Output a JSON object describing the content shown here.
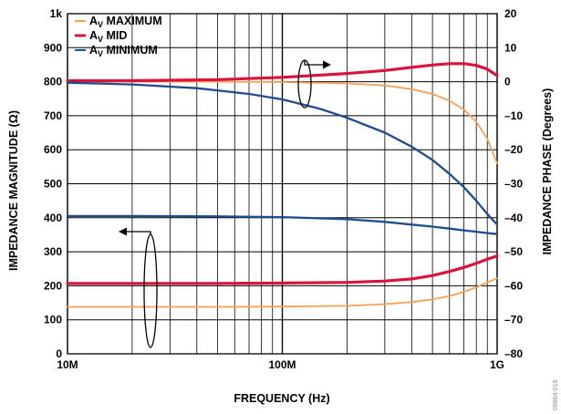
{
  "chart_data": {
    "type": "line",
    "xlabel": "FREQUENCY (Hz)",
    "ylabel_left": "IMPEDANCE MAGNITUDE (Ω)",
    "ylabel_right": "IMPEDANCE PHASE (Degrees)",
    "x_scale": "log",
    "xlim": [
      10000000,
      1000000000
    ],
    "x_ticks": [
      {
        "value": 10000000,
        "label": "10M"
      },
      {
        "value": 100000000,
        "label": "100M"
      },
      {
        "value": 1000000000,
        "label": "1G"
      }
    ],
    "ylim_left": [
      0,
      1000
    ],
    "y_ticks_left": [
      {
        "value": 0,
        "label": "0"
      },
      {
        "value": 100,
        "label": "100"
      },
      {
        "value": 200,
        "label": "200"
      },
      {
        "value": 300,
        "label": "300"
      },
      {
        "value": 400,
        "label": "400"
      },
      {
        "value": 500,
        "label": "500"
      },
      {
        "value": 600,
        "label": "600"
      },
      {
        "value": 700,
        "label": "700"
      },
      {
        "value": 800,
        "label": "800"
      },
      {
        "value": 900,
        "label": "900"
      },
      {
        "value": 1000,
        "label": "1k"
      }
    ],
    "ylim_right": [
      -80,
      20
    ],
    "y_ticks_right": [
      {
        "value": 20,
        "label": "20"
      },
      {
        "value": 10,
        "label": "10"
      },
      {
        "value": 0,
        "label": "0"
      },
      {
        "value": -10,
        "label": "–10"
      },
      {
        "value": -20,
        "label": "–20"
      },
      {
        "value": -30,
        "label": "–30"
      },
      {
        "value": -40,
        "label": "–40"
      },
      {
        "value": -50,
        "label": "–50"
      },
      {
        "value": -60,
        "label": "–60"
      },
      {
        "value": -70,
        "label": "–70"
      },
      {
        "value": -80,
        "label": "–80"
      }
    ],
    "grid": true,
    "legend_position": "top-left",
    "legend": [
      {
        "main": "A",
        "sub": "V",
        "rest": " MAXIMUM",
        "color": "#F7A058"
      },
      {
        "main": "A",
        "sub": "V",
        "rest": " MID",
        "color": "#D8143C"
      },
      {
        "main": "A",
        "sub": "V",
        "rest": " MINIMUM",
        "color": "#1F4C8F"
      }
    ],
    "series": [
      {
        "name": "AV MAXIMUM",
        "quantity": "magnitude",
        "axis": "left",
        "color": "#F7A058",
        "points": [
          [
            10000000,
            138
          ],
          [
            20000000,
            138
          ],
          [
            50000000,
            138
          ],
          [
            100000000,
            139
          ],
          [
            200000000,
            141
          ],
          [
            300000000,
            146
          ],
          [
            400000000,
            152
          ],
          [
            500000000,
            160
          ],
          [
            600000000,
            170
          ],
          [
            700000000,
            182
          ],
          [
            800000000,
            196
          ],
          [
            900000000,
            210
          ],
          [
            1000000000,
            222
          ]
        ]
      },
      {
        "name": "AV MID",
        "quantity": "magnitude",
        "axis": "left",
        "color": "#D8143C",
        "points": [
          [
            10000000,
            207
          ],
          [
            20000000,
            207
          ],
          [
            50000000,
            207
          ],
          [
            100000000,
            208
          ],
          [
            200000000,
            210
          ],
          [
            300000000,
            214
          ],
          [
            400000000,
            220
          ],
          [
            500000000,
            230
          ],
          [
            600000000,
            242
          ],
          [
            700000000,
            254
          ],
          [
            800000000,
            266
          ],
          [
            900000000,
            278
          ],
          [
            1000000000,
            288
          ]
        ]
      },
      {
        "name": "AV MINIMUM",
        "quantity": "magnitude",
        "axis": "left",
        "color": "#1F4C8F",
        "points": [
          [
            10000000,
            405
          ],
          [
            20000000,
            405
          ],
          [
            50000000,
            404
          ],
          [
            100000000,
            402
          ],
          [
            200000000,
            396
          ],
          [
            300000000,
            388
          ],
          [
            400000000,
            380
          ],
          [
            500000000,
            374
          ],
          [
            600000000,
            368
          ],
          [
            700000000,
            363
          ],
          [
            800000000,
            359
          ],
          [
            900000000,
            355
          ],
          [
            1000000000,
            352
          ]
        ]
      },
      {
        "name": "AV MAXIMUM",
        "quantity": "phase",
        "axis": "right",
        "color": "#F7A058",
        "points": [
          [
            10000000,
            0
          ],
          [
            20000000,
            0
          ],
          [
            50000000,
            0
          ],
          [
            100000000,
            -0.1
          ],
          [
            200000000,
            -0.5
          ],
          [
            300000000,
            -1.1
          ],
          [
            400000000,
            -2.2
          ],
          [
            500000000,
            -3.6
          ],
          [
            600000000,
            -5.6
          ],
          [
            700000000,
            -8.2
          ],
          [
            800000000,
            -11.8
          ],
          [
            900000000,
            -16.8
          ],
          [
            1000000000,
            -24
          ]
        ]
      },
      {
        "name": "AV MID",
        "quantity": "phase",
        "axis": "right",
        "color": "#D8143C",
        "points": [
          [
            10000000,
            0.3
          ],
          [
            20000000,
            0.3
          ],
          [
            50000000,
            0.6
          ],
          [
            100000000,
            1.3
          ],
          [
            200000000,
            2.4
          ],
          [
            300000000,
            3.3
          ],
          [
            400000000,
            4.2
          ],
          [
            500000000,
            4.9
          ],
          [
            600000000,
            5.3
          ],
          [
            700000000,
            5.3
          ],
          [
            800000000,
            4.8
          ],
          [
            900000000,
            3.7
          ],
          [
            1000000000,
            1.8
          ]
        ]
      },
      {
        "name": "AV MINIMUM",
        "quantity": "phase",
        "axis": "right",
        "color": "#1F4C8F",
        "points": [
          [
            10000000,
            -0.3
          ],
          [
            20000000,
            -0.8
          ],
          [
            40000000,
            -1.9
          ],
          [
            70000000,
            -3.6
          ],
          [
            100000000,
            -5.2
          ],
          [
            150000000,
            -8
          ],
          [
            200000000,
            -10.6
          ],
          [
            300000000,
            -15
          ],
          [
            400000000,
            -19.1
          ],
          [
            500000000,
            -23
          ],
          [
            600000000,
            -27.1
          ],
          [
            700000000,
            -31
          ],
          [
            800000000,
            -35
          ],
          [
            900000000,
            -38.9
          ],
          [
            1000000000,
            -42
          ]
        ]
      }
    ],
    "annotations": [
      {
        "text": "",
        "type": "arrow-right",
        "points_to": "right-axis"
      },
      {
        "text": "",
        "type": "arrow-left",
        "points_to": "left-axis"
      }
    ]
  },
  "figure_id": "09864-016"
}
